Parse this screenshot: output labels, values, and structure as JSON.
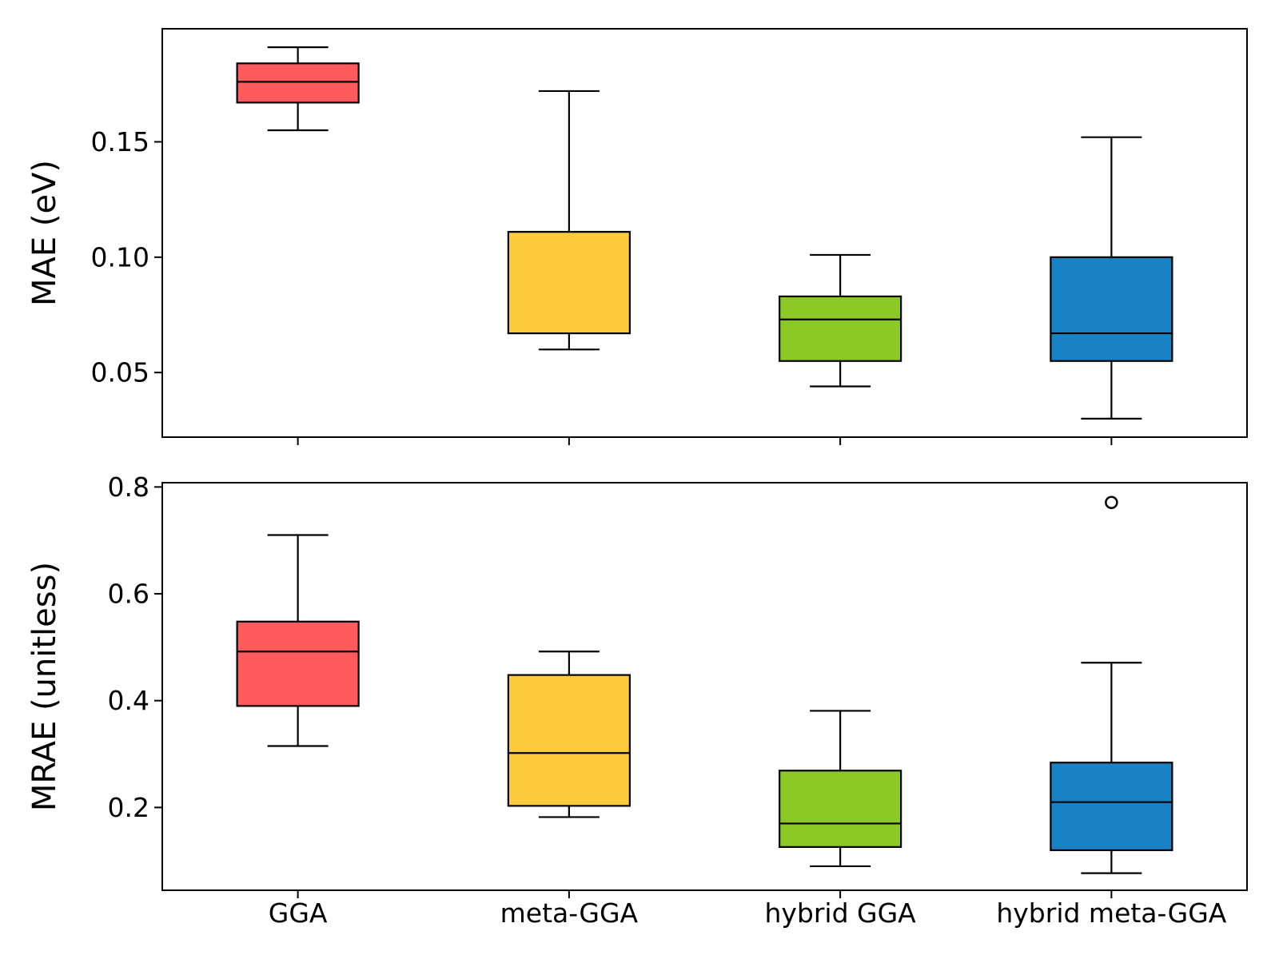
{
  "chart_data": [
    {
      "type": "box",
      "ylabel": "MAE (eV)",
      "yticks": [
        0.05,
        0.1,
        0.15
      ],
      "ytick_labels": [
        "0.05",
        "0.10",
        "0.15"
      ],
      "ylim": [
        0.022,
        0.199
      ],
      "categories": [
        "GGA",
        "meta-GGA",
        "hybrid GGA",
        "hybrid meta-GGA"
      ],
      "show_xtick_labels": false,
      "series": [
        {
          "category": "GGA",
          "color": "#FF5B5E",
          "whisker_low": 0.155,
          "q1": 0.167,
          "median": 0.176,
          "q3": 0.184,
          "whisker_high": 0.191,
          "outliers": []
        },
        {
          "category": "meta-GGA",
          "color": "#FDCA3A",
          "whisker_low": 0.06,
          "q1": 0.067,
          "median": 0.111,
          "q3": 0.111,
          "whisker_high": 0.172,
          "outliers": []
        },
        {
          "category": "hybrid GGA",
          "color": "#8AC926",
          "whisker_low": 0.044,
          "q1": 0.055,
          "median": 0.073,
          "q3": 0.083,
          "whisker_high": 0.101,
          "outliers": []
        },
        {
          "category": "hybrid meta-GGA",
          "color": "#1982C4",
          "whisker_low": 0.03,
          "q1": 0.055,
          "median": 0.067,
          "q3": 0.1,
          "whisker_high": 0.152,
          "outliers": []
        }
      ]
    },
    {
      "type": "box",
      "ylabel": "MRAE (unitless)",
      "yticks": [
        0.2,
        0.4,
        0.6,
        0.8
      ],
      "ytick_labels": [
        "0.2",
        "0.4",
        "0.6",
        "0.8"
      ],
      "ylim": [
        0.045,
        0.808
      ],
      "categories": [
        "GGA",
        "meta-GGA",
        "hybrid GGA",
        "hybrid meta-GGA"
      ],
      "show_xtick_labels": true,
      "series": [
        {
          "category": "GGA",
          "color": "#FF5B5E",
          "whisker_low": 0.315,
          "q1": 0.39,
          "median": 0.492,
          "q3": 0.548,
          "whisker_high": 0.71,
          "outliers": []
        },
        {
          "category": "meta-GGA",
          "color": "#FDCA3A",
          "whisker_low": 0.182,
          "q1": 0.203,
          "median": 0.302,
          "q3": 0.448,
          "whisker_high": 0.492,
          "outliers": []
        },
        {
          "category": "hybrid GGA",
          "color": "#8AC926",
          "whisker_low": 0.09,
          "q1": 0.126,
          "median": 0.17,
          "q3": 0.269,
          "whisker_high": 0.381,
          "outliers": []
        },
        {
          "category": "hybrid meta-GGA",
          "color": "#1982C4",
          "whisker_low": 0.077,
          "q1": 0.12,
          "median": 0.21,
          "q3": 0.284,
          "whisker_high": 0.471,
          "outliers": [
            0.771
          ]
        }
      ]
    }
  ]
}
